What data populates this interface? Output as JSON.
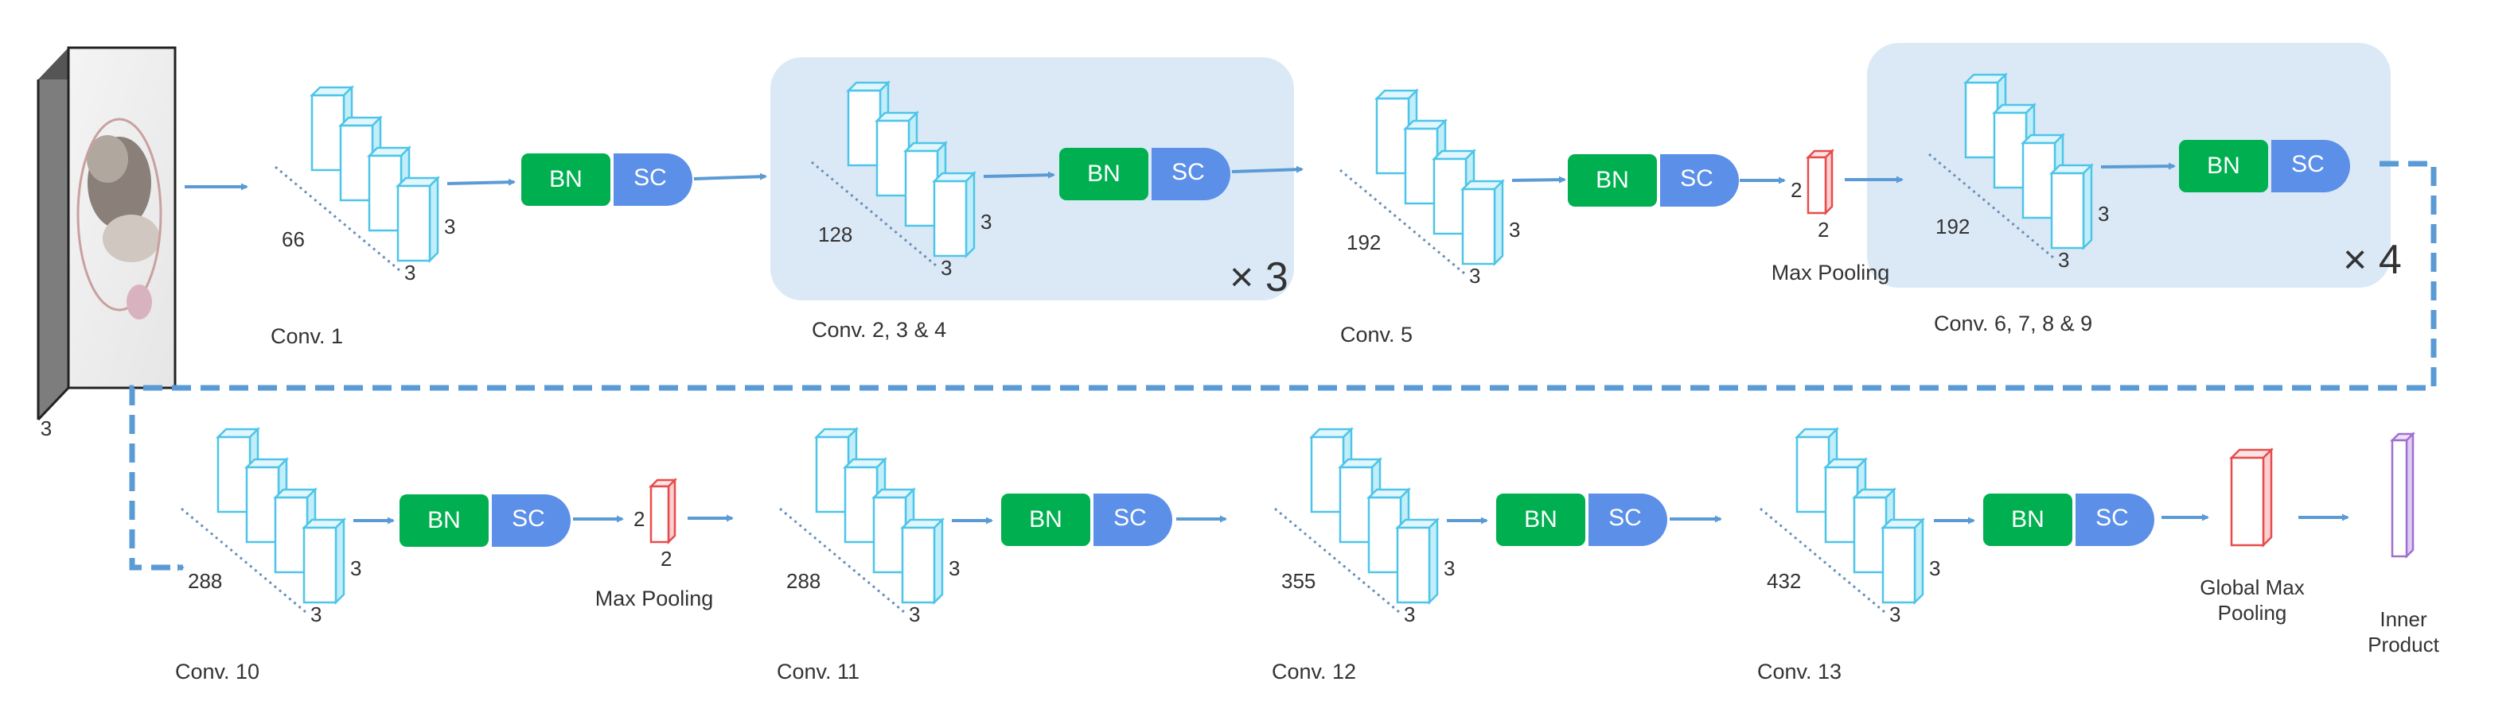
{
  "colors": {
    "bn": "#00b050",
    "sc": "#5b8fe8",
    "arrow": "#5b9bd5",
    "dashed": "#5b9bd5",
    "group_bg": "#dbe9f6",
    "filter": "#4ec5e8",
    "maxpool": "#e74c4c",
    "globalpool": "#e74c4c",
    "inner": "#a070d0",
    "text": "#333333"
  },
  "input": {
    "channels": "3"
  },
  "bn_label": "BN",
  "sc_label": "SC",
  "maxpool_label": "Max Pooling",
  "global_maxpool_label": [
    "Global Max",
    "Pooling"
  ],
  "inner_product_label": [
    "Inner",
    "Product"
  ],
  "kernel_size": "3",
  "pool_size": "2",
  "layers": [
    {
      "name": "Conv. 1",
      "filters": "66"
    },
    {
      "name": "Conv. 2, 3 & 4",
      "filters": "128",
      "repeat": "× 3"
    },
    {
      "name": "Conv. 5",
      "filters": "192"
    },
    {
      "name": "Conv. 6, 7, 8 & 9",
      "filters": "192",
      "repeat": "× 4"
    },
    {
      "name": "Conv. 10",
      "filters": "288"
    },
    {
      "name": "Conv. 11",
      "filters": "288"
    },
    {
      "name": "Conv. 12",
      "filters": "355"
    },
    {
      "name": "Conv. 13",
      "filters": "432"
    }
  ]
}
